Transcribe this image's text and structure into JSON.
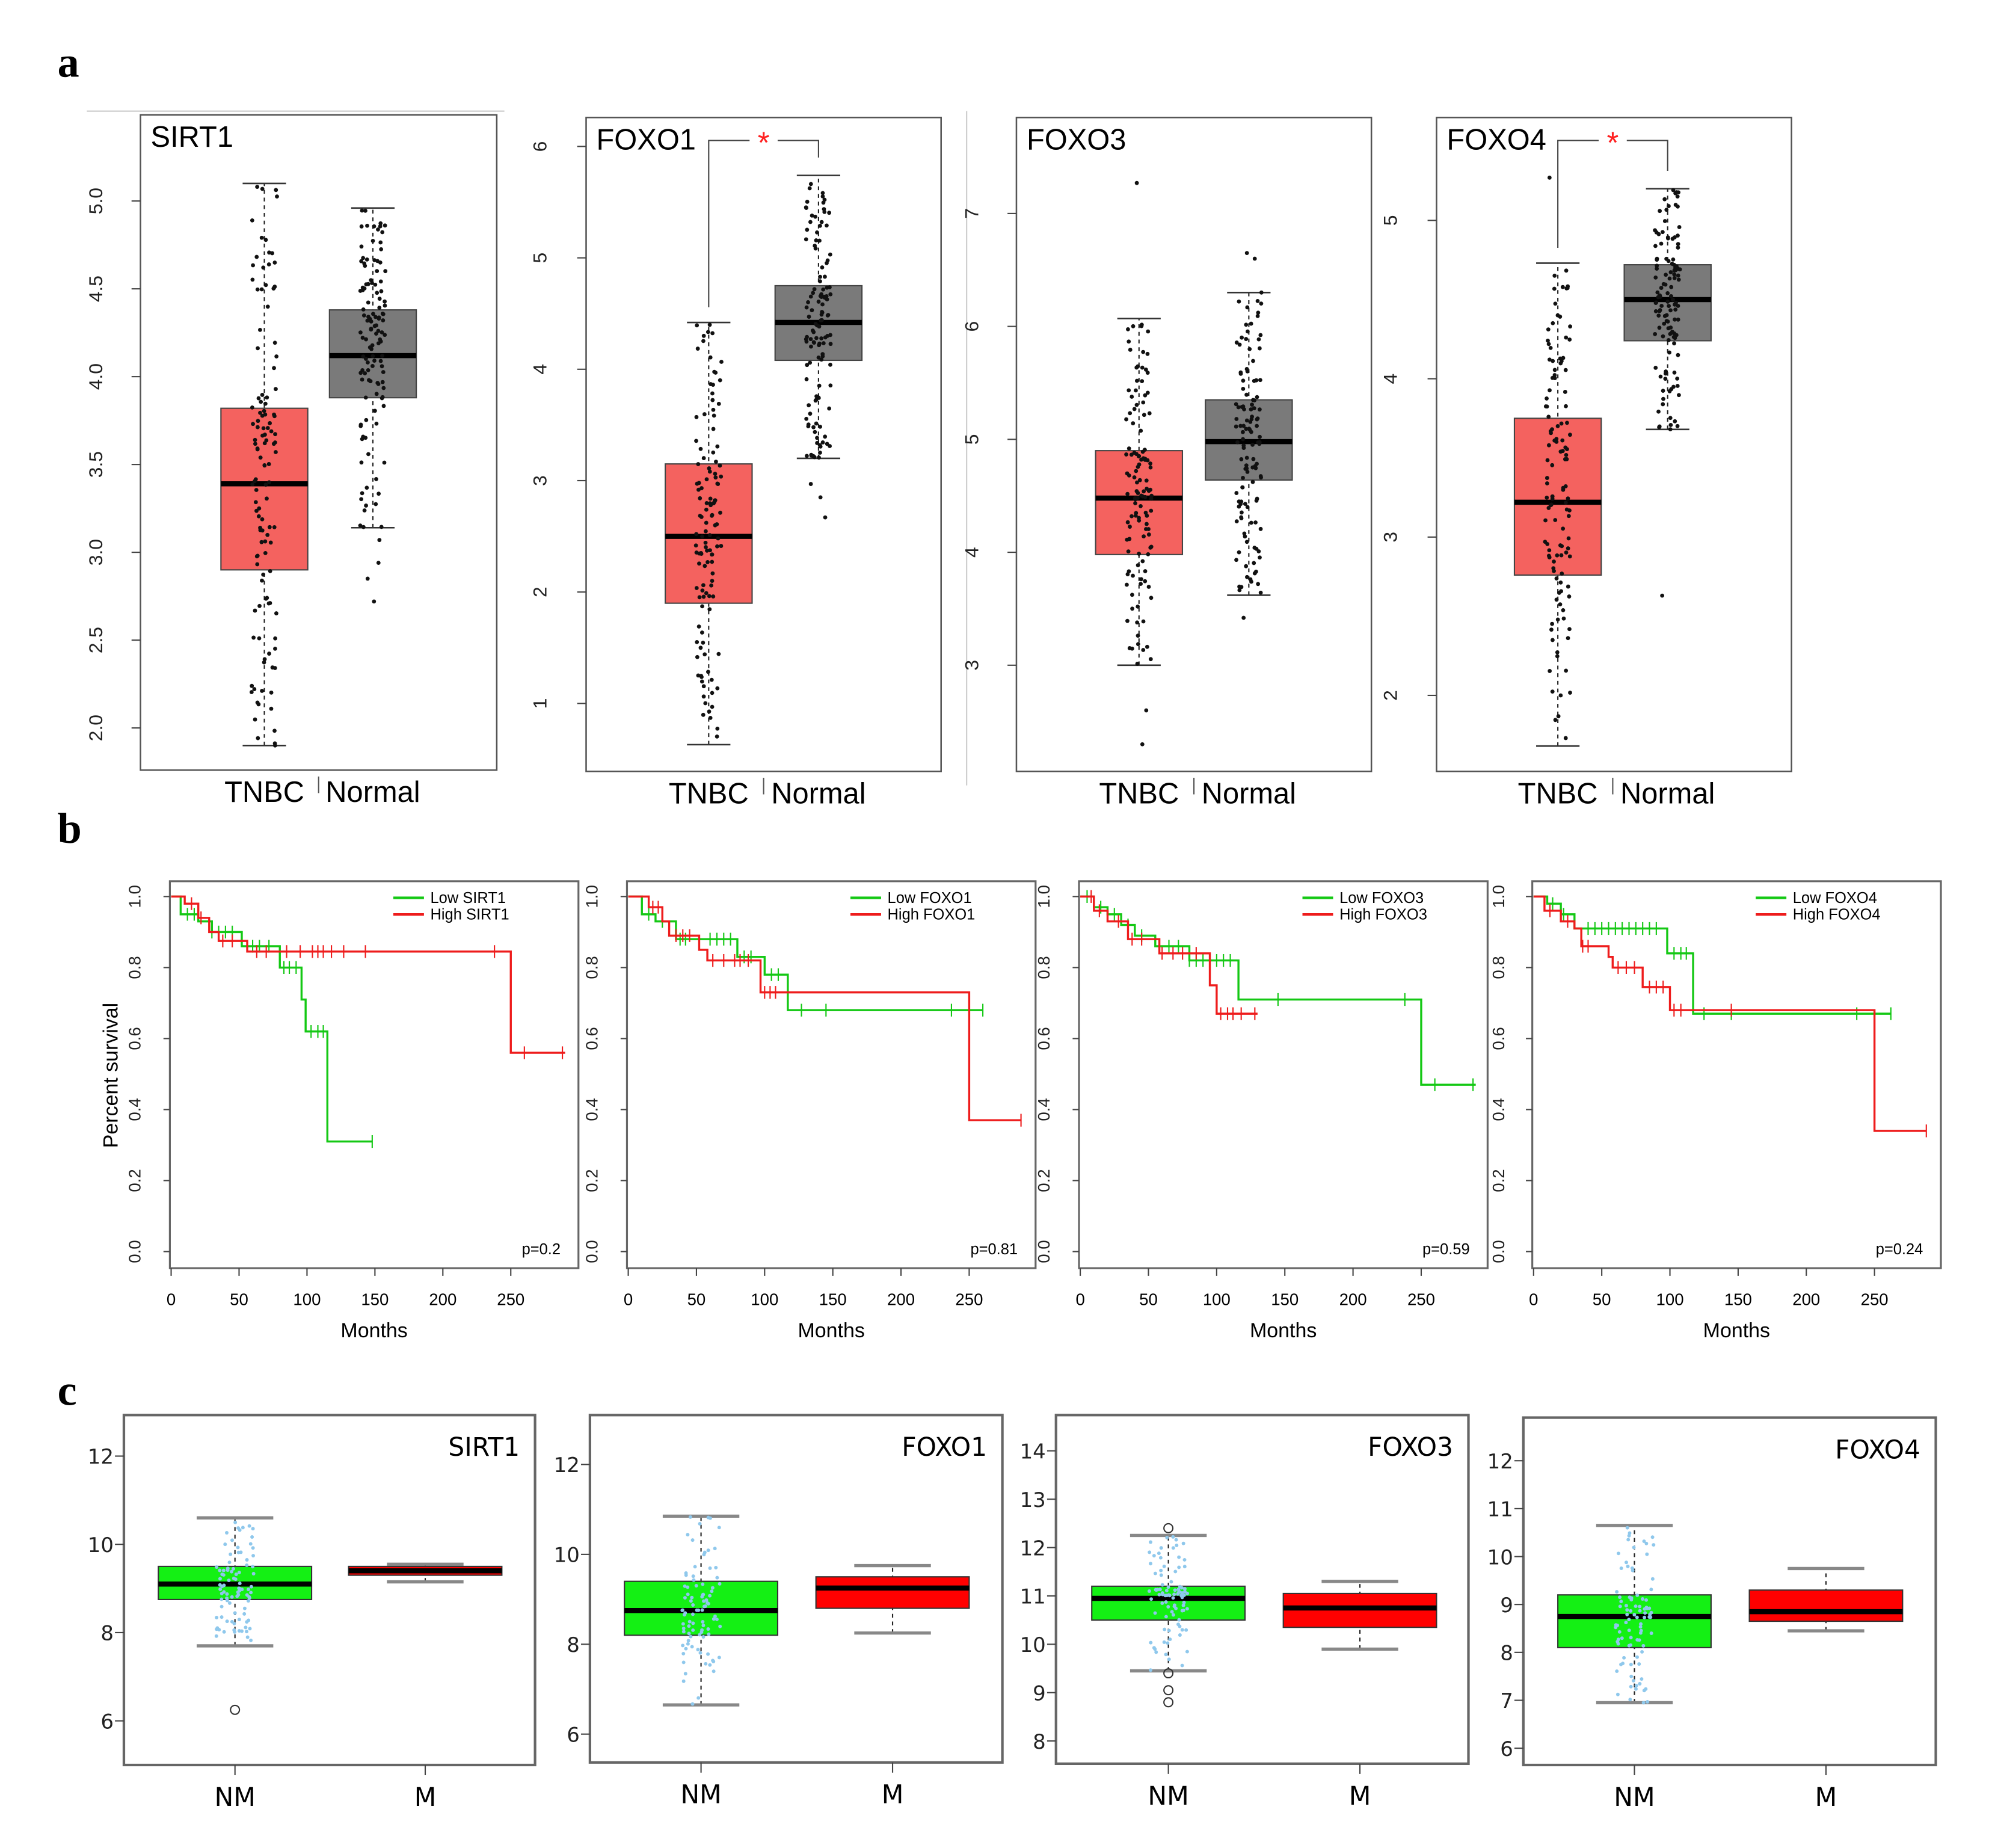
{
  "figure": {
    "panel_labels": [
      "a",
      "b",
      "c"
    ],
    "km_ylabel": "Percent survival"
  },
  "colors": {
    "tnbc": "#f4625f",
    "normal": "#7a7a7a",
    "low": "#14c814",
    "high": "#ee1c1c",
    "nm": "#14f014",
    "m": "#ff0000",
    "jitter_c": "#8fc8ec",
    "star": "#ff2020"
  },
  "chart_data": [
    {
      "type": "box",
      "panel": "a",
      "title": "SIRT1",
      "categories": [
        "TNBC",
        "Normal"
      ],
      "ylim": [
        1.76,
        5.49
      ],
      "yticks": [
        "2.0",
        "2.5",
        "3.0",
        "3.5",
        "4.0",
        "4.5",
        "5.0"
      ],
      "significance": null,
      "groups": [
        {
          "name": "TNBC",
          "whisker_low": 1.9,
          "q1": 2.9,
          "median": 3.39,
          "q3": 3.82,
          "whisker_high": 5.1,
          "outliers": []
        },
        {
          "name": "Normal",
          "whisker_low": 3.14,
          "q1": 3.88,
          "median": 4.12,
          "q3": 4.38,
          "whisker_high": 4.96,
          "outliers": [
            3.07,
            2.94,
            2.85,
            2.72
          ]
        }
      ]
    },
    {
      "type": "box",
      "panel": "a",
      "title": "FOXO1",
      "categories": [
        "TNBC",
        "Normal"
      ],
      "ylim": [
        0.39,
        6.26
      ],
      "yticks": [
        "1",
        "2",
        "3",
        "4",
        "5",
        "6"
      ],
      "significance": "*",
      "groups": [
        {
          "name": "TNBC",
          "whisker_low": 0.63,
          "q1": 1.9,
          "median": 2.5,
          "q3": 3.15,
          "whisker_high": 4.42,
          "outliers": []
        },
        {
          "name": "Normal",
          "whisker_low": 3.2,
          "q1": 4.08,
          "median": 4.42,
          "q3": 4.75,
          "whisker_high": 5.74,
          "outliers": [
            2.97,
            2.85,
            2.67
          ]
        }
      ]
    },
    {
      "type": "box",
      "panel": "a",
      "title": "FOXO3",
      "categories": [
        "TNBC",
        "Normal"
      ],
      "ylim": [
        2.06,
        7.85
      ],
      "yticks": [
        "3",
        "4",
        "5",
        "6",
        "7"
      ],
      "significance": null,
      "groups": [
        {
          "name": "TNBC",
          "whisker_low": 3.0,
          "q1": 3.98,
          "median": 4.48,
          "q3": 4.9,
          "whisker_high": 6.07,
          "outliers": [
            7.27,
            2.6,
            2.3
          ]
        },
        {
          "name": "Normal",
          "whisker_low": 3.62,
          "q1": 4.64,
          "median": 4.98,
          "q3": 5.35,
          "whisker_high": 6.3,
          "outliers": [
            6.65,
            6.6,
            3.42
          ]
        }
      ]
    },
    {
      "type": "box",
      "panel": "a",
      "title": "FOXO4",
      "categories": [
        "TNBC",
        "Normal"
      ],
      "ylim": [
        1.52,
        5.65
      ],
      "yticks": [
        "2",
        "3",
        "4",
        "5"
      ],
      "significance": "*",
      "groups": [
        {
          "name": "TNBC",
          "whisker_low": 1.68,
          "q1": 2.76,
          "median": 3.22,
          "q3": 3.75,
          "whisker_high": 4.73,
          "outliers": [
            5.27
          ]
        },
        {
          "name": "Normal",
          "whisker_low": 3.68,
          "q1": 4.24,
          "median": 4.5,
          "q3": 4.72,
          "whisker_high": 5.2,
          "outliers": [
            2.63
          ]
        }
      ]
    },
    {
      "type": "line",
      "subtype": "kaplan-meier",
      "panel": "b",
      "xlabel": "Months",
      "ylabel": "Percent survival",
      "xlim": [
        0,
        300
      ],
      "ylim": [
        -0.04,
        1.04
      ],
      "xticks": [
        "0",
        "50",
        "100",
        "150",
        "200",
        "250"
      ],
      "yticks": [
        "0.0",
        "0.2",
        "0.4",
        "0.6",
        "0.8",
        "1.0"
      ],
      "pvalue": "p=0.2",
      "legend": "top-right",
      "series": [
        {
          "name": "Low SIRT1",
          "color_key": "low",
          "steps": [
            [
              0,
              1.0
            ],
            [
              7,
              0.95
            ],
            [
              20,
              0.93
            ],
            [
              30,
              0.9
            ],
            [
              52,
              0.86
            ],
            [
              80,
              0.8
            ],
            [
              96,
              0.71
            ],
            [
              99,
              0.62
            ],
            [
              115,
              0.31
            ]
          ],
          "end": 148,
          "censored": [
            12,
            17,
            30,
            35,
            40,
            45,
            60,
            65,
            72,
            83,
            87,
            92,
            103,
            108,
            112,
            148
          ]
        },
        {
          "name": "High SIRT1",
          "color_key": "high",
          "steps": [
            [
              0,
              1.0
            ],
            [
              10,
              0.98
            ],
            [
              20,
              0.94
            ],
            [
              28,
              0.9
            ],
            [
              35,
              0.875
            ],
            [
              56,
              0.845
            ],
            [
              250,
              0.56
            ]
          ],
          "end": 290,
          "censored": [
            15,
            22,
            38,
            45,
            63,
            70,
            85,
            95,
            104,
            108,
            112,
            118,
            127,
            143,
            238,
            260,
            288
          ]
        }
      ]
    },
    {
      "type": "line",
      "subtype": "kaplan-meier",
      "panel": "b",
      "xlabel": "Months",
      "ylabel": "",
      "xlim": [
        0,
        300
      ],
      "ylim": [
        -0.04,
        1.04
      ],
      "xticks": [
        "0",
        "50",
        "100",
        "150",
        "200",
        "250"
      ],
      "yticks": [
        "0.0",
        "0.2",
        "0.4",
        "0.6",
        "0.8",
        "1.0"
      ],
      "pvalue": "p=0.81",
      "legend": "top-right",
      "series": [
        {
          "name": "Low FOXO1",
          "color_key": "low",
          "steps": [
            [
              0,
              1.0
            ],
            [
              10,
              0.95
            ],
            [
              20,
              0.93
            ],
            [
              35,
              0.88
            ],
            [
              80,
              0.83
            ],
            [
              100,
              0.78
            ],
            [
              117,
              0.68
            ]
          ],
          "end": 260,
          "censored": [
            15,
            25,
            38,
            42,
            60,
            65,
            70,
            75,
            85,
            90,
            105,
            110,
            127,
            145,
            237,
            260
          ]
        },
        {
          "name": "High FOXO1",
          "color_key": "high",
          "steps": [
            [
              0,
              1.0
            ],
            [
              15,
              0.97
            ],
            [
              25,
              0.93
            ],
            [
              30,
              0.89
            ],
            [
              52,
              0.85
            ],
            [
              58,
              0.82
            ],
            [
              97,
              0.73
            ],
            [
              250,
              0.37
            ]
          ],
          "end": 288,
          "censored": [
            18,
            22,
            35,
            40,
            45,
            62,
            70,
            78,
            82,
            88,
            100,
            104,
            108,
            288
          ]
        }
      ]
    },
    {
      "type": "line",
      "subtype": "kaplan-meier",
      "panel": "b",
      "xlabel": "Months",
      "ylabel": "",
      "xlim": [
        0,
        300
      ],
      "ylim": [
        -0.04,
        1.04
      ],
      "xticks": [
        "0",
        "50",
        "100",
        "150",
        "200",
        "250"
      ],
      "yticks": [
        "0.0",
        "0.2",
        "0.4",
        "0.6",
        "0.8",
        "1.0"
      ],
      "pvalue": "p=0.59",
      "legend": "top-right",
      "series": [
        {
          "name": "Low FOXO3",
          "color_key": "low",
          "steps": [
            [
              0,
              1.0
            ],
            [
              10,
              0.97
            ],
            [
              20,
              0.95
            ],
            [
              30,
              0.92
            ],
            [
              40,
              0.89
            ],
            [
              55,
              0.86
            ],
            [
              80,
              0.82
            ],
            [
              116,
              0.71
            ],
            [
              250,
              0.47
            ]
          ],
          "end": 290,
          "censored": [
            5,
            15,
            25,
            35,
            45,
            65,
            72,
            80,
            85,
            90,
            100,
            105,
            110,
            145,
            238,
            260,
            288
          ]
        },
        {
          "name": "High FOXO3",
          "color_key": "high",
          "steps": [
            [
              0,
              1.0
            ],
            [
              10,
              0.96
            ],
            [
              20,
              0.93
            ],
            [
              35,
              0.88
            ],
            [
              58,
              0.84
            ],
            [
              95,
              0.75
            ],
            [
              100,
              0.67
            ]
          ],
          "end": 130,
          "censored": [
            8,
            14,
            28,
            38,
            45,
            60,
            68,
            75,
            85,
            103,
            108,
            112,
            118,
            128
          ]
        }
      ]
    },
    {
      "type": "line",
      "subtype": "kaplan-meier",
      "panel": "b",
      "xlabel": "Months",
      "ylabel": "",
      "xlim": [
        0,
        300
      ],
      "ylim": [
        -0.04,
        1.04
      ],
      "xticks": [
        "0",
        "50",
        "100",
        "150",
        "200",
        "250"
      ],
      "yticks": [
        "0.0",
        "0.2",
        "0.4",
        "0.6",
        "0.8",
        "1.0"
      ],
      "pvalue": "p=0.24",
      "legend": "top-right",
      "series": [
        {
          "name": "Low FOXO4",
          "color_key": "low",
          "steps": [
            [
              0,
              1.0
            ],
            [
              10,
              0.98
            ],
            [
              20,
              0.95
            ],
            [
              30,
              0.91
            ],
            [
              98,
              0.84
            ],
            [
              117,
              0.67
            ]
          ],
          "end": 262,
          "censored": [
            14,
            22,
            40,
            45,
            50,
            55,
            60,
            65,
            70,
            75,
            80,
            85,
            90,
            103,
            108,
            112,
            125,
            145,
            237,
            262
          ]
        },
        {
          "name": "High FOXO4",
          "color_key": "high",
          "steps": [
            [
              0,
              1.0
            ],
            [
              8,
              0.96
            ],
            [
              20,
              0.93
            ],
            [
              30,
              0.91
            ],
            [
              35,
              0.86
            ],
            [
              55,
              0.83
            ],
            [
              58,
              0.8
            ],
            [
              80,
              0.745
            ],
            [
              100,
              0.68
            ],
            [
              250,
              0.34
            ]
          ],
          "end": 288,
          "censored": [
            12,
            25,
            36,
            40,
            62,
            68,
            74,
            85,
            90,
            95,
            103,
            108,
            145,
            288
          ]
        }
      ]
    },
    {
      "type": "box",
      "panel": "c",
      "title": "SIRT1",
      "categories": [
        "NM",
        "M"
      ],
      "ylim": [
        5.0,
        12.93
      ],
      "yticks": [
        "6",
        "8",
        "10",
        "12"
      ],
      "significance": null,
      "groups": [
        {
          "name": "NM",
          "whisker_low": 7.7,
          "q1": 8.75,
          "median": 9.1,
          "q3": 9.5,
          "whisker_high": 10.6,
          "outliers": [
            6.25
          ]
        },
        {
          "name": "M",
          "whisker_low": 9.15,
          "q1": 9.3,
          "median": 9.4,
          "q3": 9.5,
          "whisker_high": 9.55,
          "outliers": []
        }
      ]
    },
    {
      "type": "box",
      "panel": "c",
      "title": "FOXO1",
      "categories": [
        "NM",
        "M"
      ],
      "ylim": [
        5.37,
        13.1
      ],
      "yticks": [
        "6",
        "8",
        "10",
        "12"
      ],
      "significance": null,
      "groups": [
        {
          "name": "NM",
          "whisker_low": 6.65,
          "q1": 8.2,
          "median": 8.75,
          "q3": 9.4,
          "whisker_high": 10.85,
          "outliers": []
        },
        {
          "name": "M",
          "whisker_low": 8.25,
          "q1": 8.8,
          "median": 9.25,
          "q3": 9.5,
          "whisker_high": 9.75,
          "outliers": []
        }
      ]
    },
    {
      "type": "box",
      "panel": "c",
      "title": "FOXO3",
      "categories": [
        "NM",
        "M"
      ],
      "ylim": [
        7.53,
        14.74
      ],
      "yticks": [
        "8",
        "9",
        "10",
        "11",
        "12",
        "13",
        "14"
      ],
      "significance": null,
      "groups": [
        {
          "name": "NM",
          "whisker_low": 9.45,
          "q1": 10.5,
          "median": 10.95,
          "q3": 11.2,
          "whisker_high": 12.25,
          "outliers": [
            12.4,
            9.4,
            9.05,
            8.8
          ]
        },
        {
          "name": "M",
          "whisker_low": 9.9,
          "q1": 10.35,
          "median": 10.75,
          "q3": 11.05,
          "whisker_high": 11.3,
          "outliers": []
        }
      ]
    },
    {
      "type": "box",
      "panel": "c",
      "title": "FOXO4",
      "categories": [
        "NM",
        "M"
      ],
      "ylim": [
        5.65,
        12.9
      ],
      "yticks": [
        "6",
        "7",
        "8",
        "9",
        "10",
        "11",
        "12"
      ],
      "significance": null,
      "groups": [
        {
          "name": "NM",
          "whisker_low": 6.95,
          "q1": 8.1,
          "median": 8.75,
          "q3": 9.2,
          "whisker_high": 10.65,
          "outliers": []
        },
        {
          "name": "M",
          "whisker_low": 8.45,
          "q1": 8.65,
          "median": 8.85,
          "q3": 9.3,
          "whisker_high": 9.75,
          "outliers": []
        }
      ]
    }
  ]
}
